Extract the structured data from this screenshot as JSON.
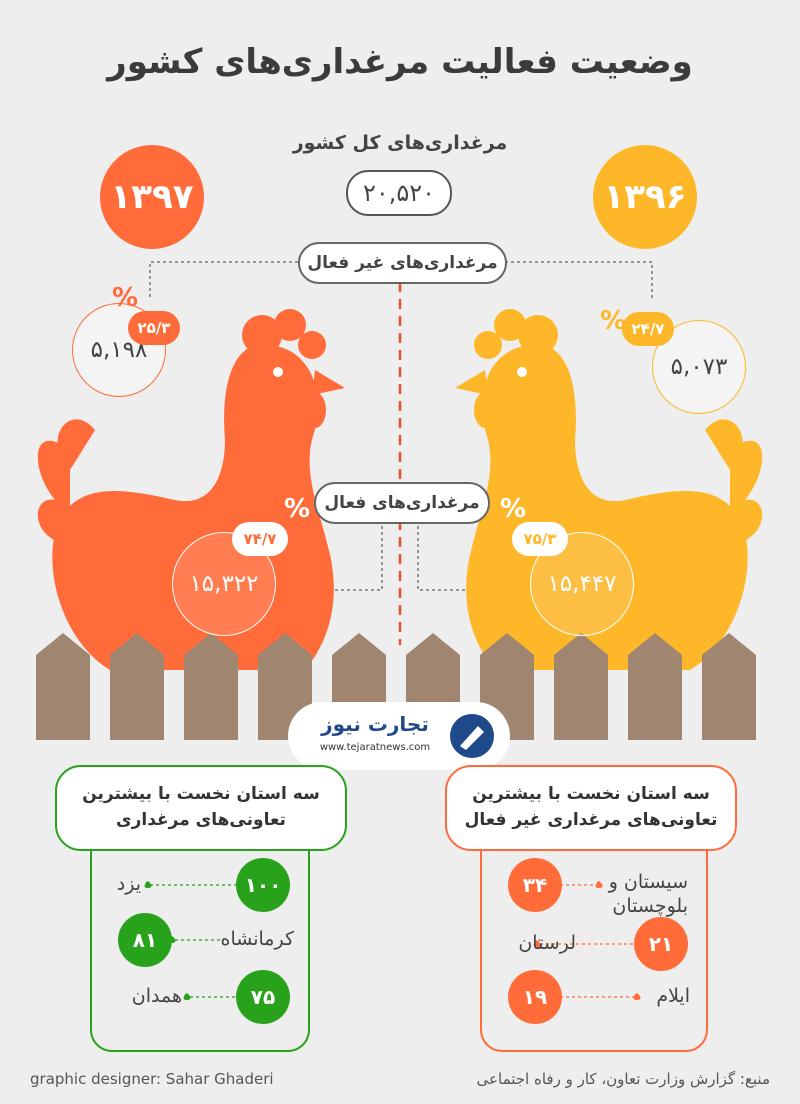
{
  "title": "وضعیت فعالیت مرغداری‌های کشور",
  "total": {
    "label": "مرغداری‌های کل کشور",
    "value": "۲۰,۵۲۰"
  },
  "inactive_label": "مرغداری‌های غیر فعال",
  "active_label": "مرغداری‌های فعال",
  "pct_sign": "%",
  "year_1397": {
    "year": "۱۳۹۷",
    "color": "#ff6c3a",
    "inactive_count": "۵,۱۹۸",
    "inactive_pct": "۲۵/۳",
    "active_count": "۱۵,۳۲۲",
    "active_pct": "۷۴/۷"
  },
  "year_1396": {
    "year": "۱۳۹۶",
    "color": "#fdb729",
    "inactive_count": "۵,۰۷۳",
    "inactive_pct": "۲۴/۷",
    "active_count": "۱۵,۴۴۷",
    "active_pct": "۷۵/۳"
  },
  "logo": {
    "name": "تجارت نیوز",
    "url": "www.tejaratnews.com"
  },
  "active_provinces": {
    "heading": "سه استان نخست با بیشترین تعاونی‌های مرغداری",
    "color": "#27a21a",
    "items": [
      {
        "name": "یزد",
        "value": "۱۰۰"
      },
      {
        "name": "کرمانشاه",
        "value": "۸۱"
      },
      {
        "name": "همدان",
        "value": "۷۵"
      }
    ]
  },
  "inactive_provinces": {
    "heading": "سه استان نخست با بیشترین تعاونی‌های مرغداری غیر فعال",
    "color": "#ff6c3a",
    "items": [
      {
        "name": "سیستان و بلوچستان",
        "value": "۳۴"
      },
      {
        "name": "لرستان",
        "value": "۲۱"
      },
      {
        "name": "ایلام",
        "value": "۱۹"
      }
    ]
  },
  "footer": {
    "designer": "graphic designer: Sahar Ghaderi",
    "source": "منبع: گزارش وزارت تعاون، کار و رفاه اجتماعی"
  }
}
